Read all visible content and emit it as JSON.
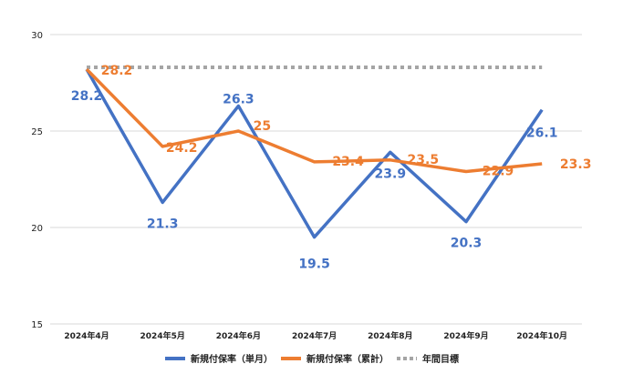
{
  "chart_data": {
    "type": "line",
    "categories": [
      "2024年4月",
      "2024年5月",
      "2024年6月",
      "2024年7月",
      "2024年8月",
      "2024年9月",
      "2024年10月"
    ],
    "ylim": [
      15,
      30
    ],
    "yticks": [
      15,
      20,
      25,
      30
    ],
    "grid": true,
    "legend_position": "bottom",
    "series": [
      {
        "name": "新規付保率（単月）",
        "color": "#4472C4",
        "values": [
          28.2,
          21.3,
          26.3,
          19.5,
          23.9,
          20.3,
          26.1
        ],
        "labels": [
          "28.2",
          "21.3",
          "26.3",
          "19.5",
          "23.9",
          "20.3",
          "26.1"
        ],
        "style": "solid"
      },
      {
        "name": "新規付保率（累計）",
        "color": "#ED7D31",
        "values": [
          28.2,
          24.2,
          25,
          23.4,
          23.5,
          22.9,
          23.3
        ],
        "labels": [
          "28.2",
          "24.2",
          "25",
          "23.4",
          "23.5",
          "22.9",
          "23.3"
        ],
        "style": "solid"
      },
      {
        "name": "年間目標",
        "color": "#A5A5A5",
        "values": [
          28.3,
          28.3,
          28.3,
          28.3,
          28.3,
          28.3,
          28.3
        ],
        "style": "dotted"
      }
    ]
  }
}
